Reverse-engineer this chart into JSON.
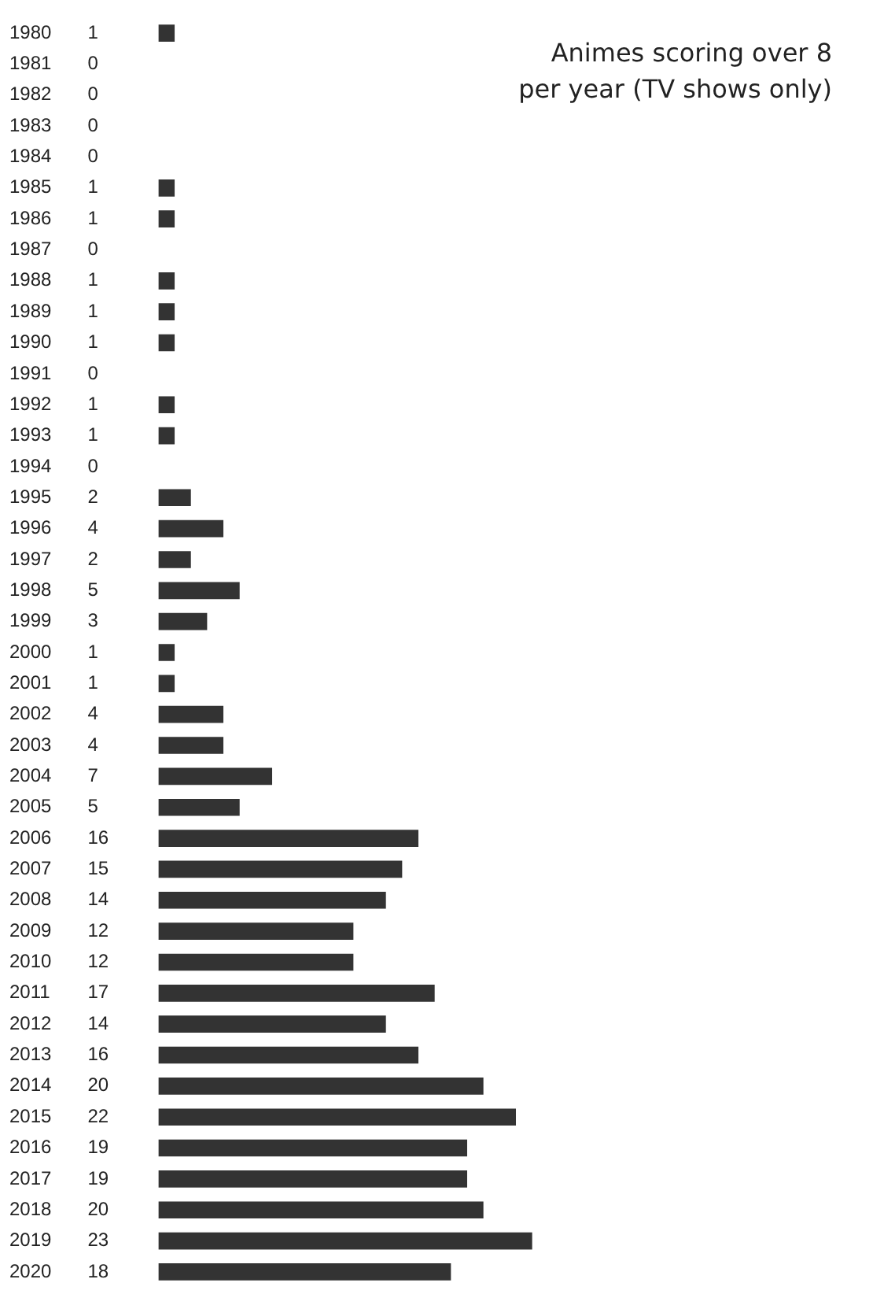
{
  "chart_data": {
    "type": "bar",
    "orientation": "horizontal",
    "title": "Animes scoring over 8 per year (TV shows only)",
    "categories": [
      "1980",
      "1981",
      "1982",
      "1983",
      "1984",
      "1985",
      "1986",
      "1987",
      "1988",
      "1989",
      "1990",
      "1991",
      "1992",
      "1993",
      "1994",
      "1995",
      "1996",
      "1997",
      "1998",
      "1999",
      "2000",
      "2001",
      "2002",
      "2003",
      "2004",
      "2005",
      "2006",
      "2007",
      "2008",
      "2009",
      "2010",
      "2011",
      "2012",
      "2013",
      "2014",
      "2015",
      "2016",
      "2017",
      "2018",
      "2019",
      "2020"
    ],
    "values": [
      1,
      0,
      0,
      0,
      0,
      1,
      1,
      0,
      1,
      1,
      1,
      0,
      1,
      1,
      0,
      2,
      4,
      2,
      5,
      3,
      1,
      1,
      4,
      4,
      7,
      5,
      16,
      15,
      14,
      12,
      12,
      17,
      14,
      16,
      20,
      22,
      19,
      19,
      20,
      23,
      18
    ],
    "color": "#333333",
    "data_labels": true,
    "grid": false,
    "legend": false
  }
}
